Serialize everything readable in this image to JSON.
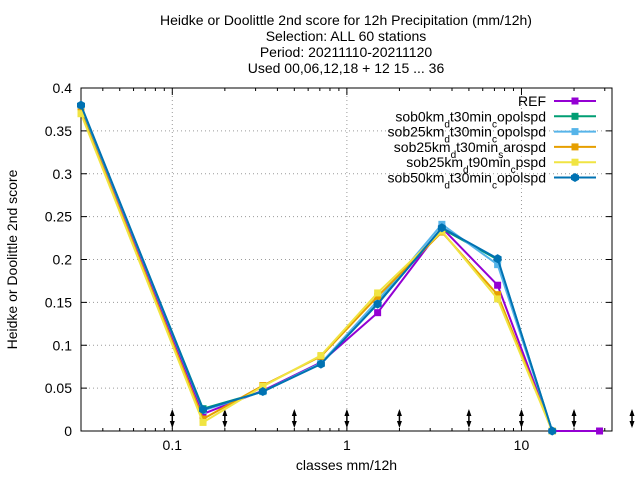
{
  "chart_data": {
    "type": "line",
    "title_lines": [
      "Heidke or Doolittle 2nd score  for 12h Precipitation (mm/12h)",
      "Selection: ALL     60 stations",
      "Period: 20211110-20211120",
      "Used 00,06,12,18 + 12 15 ... 36"
    ],
    "xlabel": "classes mm/12h",
    "ylabel": "Heidke or Doolittle 2nd score",
    "x_scale": "log",
    "xlim": [
      0.03,
      33
    ],
    "ylim": [
      0,
      0.4
    ],
    "x_ticks": [
      0.1,
      1,
      10
    ],
    "x_tick_labels": [
      "0.1",
      "1",
      "10"
    ],
    "y_ticks": [
      0,
      0.05,
      0.1,
      0.15,
      0.2,
      0.25,
      0.3,
      0.35,
      0.4
    ],
    "y_tick_labels": [
      "0",
      "0.05",
      "0.1",
      "0.15",
      "0.2",
      "0.25",
      "0.3",
      "0.35",
      "0.4"
    ],
    "threshold_markers": [
      0.1,
      0.2,
      0.5,
      1,
      2,
      5,
      10,
      20,
      50
    ],
    "grid": true,
    "legend_position": "top-right",
    "series": [
      {
        "name": "REF",
        "name_parts": [
          {
            "t": "REF",
            "s": ""
          }
        ],
        "color": "#9400d3",
        "x": [
          0.03,
          0.15,
          0.33,
          0.71,
          1.5,
          3.5,
          7.3,
          15,
          28
        ],
        "y": [
          0.378,
          0.02,
          0.047,
          0.08,
          0.138,
          0.237,
          0.17,
          0.0,
          0.0
        ]
      },
      {
        "name": "sob0kmdt30mincopolspd",
        "name_parts": [
          {
            "t": "sob0km",
            "s": ""
          },
          {
            "t": "d",
            "s": "sub"
          },
          {
            "t": "t30min",
            "s": ""
          },
          {
            "t": "c",
            "s": "sub"
          },
          {
            "t": "opolspd",
            "s": ""
          }
        ],
        "color": "#009e73",
        "x": [
          0.03,
          0.15,
          0.33,
          0.71,
          1.5,
          3.5,
          7.3,
          15
        ],
        "y": [
          0.378,
          0.026,
          0.046,
          0.079,
          0.149,
          0.236,
          0.2,
          0.0
        ]
      },
      {
        "name": "sob25kmdt30mincopolspd",
        "name_parts": [
          {
            "t": "sob25km",
            "s": ""
          },
          {
            "t": "d",
            "s": "sub"
          },
          {
            "t": "t30min",
            "s": ""
          },
          {
            "t": "c",
            "s": "sub"
          },
          {
            "t": "opolspd",
            "s": ""
          }
        ],
        "color": "#56b4e9",
        "x": [
          0.03,
          0.15,
          0.33,
          0.71,
          1.5,
          3.5,
          7.3,
          15
        ],
        "y": [
          0.379,
          0.024,
          0.046,
          0.079,
          0.152,
          0.241,
          0.194,
          0.0
        ]
      },
      {
        "name": "sob25kmdt30minsarospd",
        "name_parts": [
          {
            "t": "sob25km",
            "s": ""
          },
          {
            "t": "d",
            "s": "sub"
          },
          {
            "t": "t30min",
            "s": ""
          },
          {
            "t": "s",
            "s": "sub"
          },
          {
            "t": "arospd",
            "s": ""
          }
        ],
        "color": "#e69f00",
        "x": [
          0.03,
          0.15,
          0.33,
          0.71,
          1.5,
          3.5,
          7.3,
          15
        ],
        "y": [
          0.372,
          0.014,
          0.053,
          0.087,
          0.157,
          0.232,
          0.159,
          0.0
        ]
      },
      {
        "name": "sob25kmdt90mincpspd",
        "name_parts": [
          {
            "t": "sob25km",
            "s": ""
          },
          {
            "t": "d",
            "s": "sub"
          },
          {
            "t": "t90min",
            "s": ""
          },
          {
            "t": "c",
            "s": "sub"
          },
          {
            "t": "pspd",
            "s": ""
          }
        ],
        "color": "#f0e442",
        "x": [
          0.03,
          0.15,
          0.33,
          0.71,
          1.5,
          3.5,
          7.3,
          15
        ],
        "y": [
          0.37,
          0.01,
          0.052,
          0.088,
          0.161,
          0.233,
          0.154,
          0.0
        ]
      },
      {
        "name": "sob50kmdt30mincopolspd",
        "name_parts": [
          {
            "t": "sob50km",
            "s": ""
          },
          {
            "t": "d",
            "s": "sub"
          },
          {
            "t": "t30min",
            "s": ""
          },
          {
            "t": "c",
            "s": "sub"
          },
          {
            "t": "opolspd",
            "s": ""
          }
        ],
        "color": "#0072b2",
        "x": [
          0.03,
          0.15,
          0.33,
          0.71,
          1.5,
          3.5,
          7.3,
          15
        ],
        "y": [
          0.38,
          0.025,
          0.046,
          0.078,
          0.148,
          0.237,
          0.201,
          0.0
        ]
      }
    ]
  }
}
